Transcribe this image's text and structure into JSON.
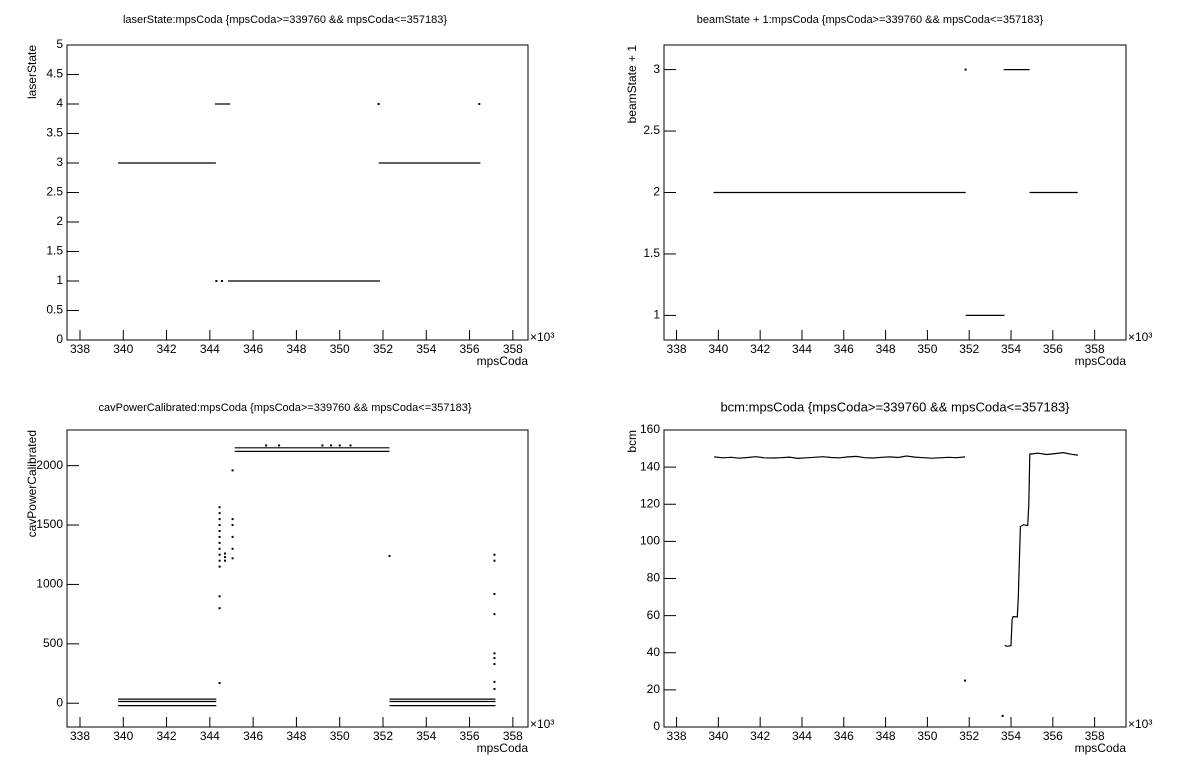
{
  "chart_data": [
    {
      "type": "scatter",
      "title": "laserState:mpsCoda {mpsCoda>=339760 && mpsCoda<=357183}",
      "x_label": "mpsCoda",
      "y_label": "laserState",
      "x_multiplier": "×10³",
      "xlim": [
        337.4,
        358.7
      ],
      "xticks": [
        338,
        340,
        342,
        344,
        346,
        348,
        350,
        352,
        354,
        356,
        358
      ],
      "ylim": [
        0,
        5
      ],
      "yticks": [
        0,
        0.5,
        1,
        1.5,
        2,
        2.5,
        3,
        3.5,
        4,
        4.5,
        5
      ],
      "series": [
        {
          "style": "line",
          "color": "#000000",
          "x": [
            339.76,
            344.28,
            null,
            344.24,
            344.93,
            null,
            344.84,
            351.86,
            null,
            351.8,
            356.5
          ],
          "values": [
            3,
            3,
            null,
            4,
            4,
            null,
            1,
            1,
            null,
            3,
            3
          ]
        },
        {
          "style": "dots",
          "color": "#000000",
          "x": [
            344.3,
            344.56,
            351.8,
            356.45
          ],
          "values": [
            1,
            1,
            4,
            4
          ]
        }
      ]
    },
    {
      "type": "scatter",
      "title": "beamState + 1:mpsCoda {mpsCoda>=339760 && mpsCoda<=357183}",
      "x_label": "mpsCoda",
      "y_label": "beamState + 1",
      "x_multiplier": "×10³",
      "xlim": [
        337.4,
        359.5
      ],
      "xticks": [
        338,
        340,
        342,
        344,
        346,
        348,
        350,
        352,
        354,
        356,
        358
      ],
      "ylim": [
        0.8,
        3.2
      ],
      "yticks": [
        1,
        1.5,
        2,
        2.5,
        3
      ],
      "series": [
        {
          "style": "line",
          "color": "#000000",
          "x": [
            339.77,
            351.83,
            null,
            351.83,
            353.69,
            null,
            353.65,
            354.89,
            null,
            354.89,
            357.19
          ],
          "values": [
            2,
            2,
            null,
            1,
            1,
            null,
            3,
            3,
            null,
            2,
            2
          ]
        },
        {
          "style": "dots",
          "color": "#000000",
          "x": [
            351.83
          ],
          "values": [
            3
          ]
        }
      ]
    },
    {
      "type": "scatter",
      "title": "cavPowerCalibrated:mpsCoda {mpsCoda>=339760 && mpsCoda<=357183}",
      "x_label": "mpsCoda",
      "y_label": "cavPowerCalibrated",
      "x_multiplier": "×10³",
      "xlim": [
        337.4,
        358.7
      ],
      "xticks": [
        338,
        340,
        342,
        344,
        346,
        348,
        350,
        352,
        354,
        356,
        358
      ],
      "ylim": [
        -200,
        2300
      ],
      "yticks": [
        0,
        500,
        1000,
        1500,
        2000
      ],
      "series": [
        {
          "style": "line",
          "color": "#000000",
          "x": [
            339.76,
            344.3,
            null,
            339.76,
            344.3,
            null,
            339.76,
            344.3,
            null,
            345.15,
            352.3,
            null,
            345.15,
            352.3,
            null,
            352.3,
            357.2,
            null,
            352.3,
            357.2,
            null,
            352.3,
            357.2
          ],
          "values": [
            35,
            35,
            null,
            15,
            15,
            null,
            -20,
            -20,
            null,
            2150,
            2150,
            null,
            2120,
            2120,
            null,
            35,
            35,
            null,
            15,
            15,
            null,
            -20,
            -20
          ]
        },
        {
          "style": "dots",
          "color": "#000000",
          "x": [
            344.45,
            344.45,
            344.45,
            344.45,
            344.45,
            344.45,
            344.45,
            344.45,
            344.45,
            344.45,
            344.45,
            344.45,
            344.45,
            344.45,
            344.7,
            344.7,
            344.7,
            345.05,
            345.05,
            345.05,
            345.05,
            345.05,
            345.05,
            352.3,
            346.6,
            347.2,
            349.2,
            349.6,
            350,
            350.5,
            357.15,
            357.15,
            357.15,
            357.15,
            357.15,
            357.15,
            357.15,
            357.15,
            357.15
          ],
          "values": [
            1150,
            1200,
            1250,
            1300,
            1350,
            1400,
            1450,
            1500,
            1550,
            1600,
            1650,
            900,
            800,
            170,
            1200,
            1230,
            1260,
            1220,
            1300,
            1400,
            1500,
            1550,
            1960,
            1240,
            2170,
            2170,
            2170,
            2170,
            2170,
            2170,
            1250,
            1200,
            920,
            750,
            420,
            380,
            330,
            180,
            120
          ]
        }
      ]
    },
    {
      "type": "scatter",
      "title": "bcm:mpsCoda {mpsCoda>=339760 && mpsCoda<=357183}",
      "x_label": "mpsCoda",
      "y_label": "bcm",
      "x_multiplier": "×10³",
      "xlim": [
        337.4,
        359.5
      ],
      "xticks": [
        338,
        340,
        342,
        344,
        346,
        348,
        350,
        352,
        354,
        356,
        358
      ],
      "ylim": [
        0,
        160
      ],
      "yticks": [
        0,
        20,
        40,
        60,
        80,
        100,
        120,
        140,
        160
      ],
      "series": [
        {
          "style": "line",
          "color": "#000000",
          "x": [
            339.8,
            340.2,
            340.6,
            341,
            341.4,
            341.8,
            342.2,
            342.6,
            343,
            343.4,
            343.8,
            344.2,
            344.6,
            345,
            345.4,
            345.8,
            346.2,
            346.6,
            347,
            347.4,
            347.8,
            348.2,
            348.6,
            349,
            349.4,
            349.8,
            350.2,
            350.6,
            351,
            351.4,
            351.8,
            null,
            353.7,
            353.8,
            354,
            354.05,
            354.1,
            354.3,
            354.35,
            354.4,
            354.45,
            354.6,
            354.8,
            354.85,
            354.9,
            355.3,
            355.7,
            356.1,
            356.5,
            356.9,
            357.2
          ],
          "values": [
            145.5,
            145,
            145.3,
            144.8,
            145.2,
            145.6,
            145,
            144.9,
            145.1,
            145.4,
            144.7,
            145,
            145.3,
            145.6,
            145.2,
            145,
            145.5,
            145.8,
            145.1,
            144.9,
            145.3,
            145.5,
            145.2,
            146,
            145.4,
            145.1,
            144.8,
            145,
            145.3,
            145.1,
            145.5,
            null,
            44,
            43.5,
            43.8,
            58,
            59.5,
            59.3,
            70,
            90,
            108,
            109,
            108.5,
            120,
            147,
            147.5,
            146.8,
            147.3,
            147.8,
            146.9,
            146.5
          ]
        },
        {
          "style": "dots",
          "color": "#000000",
          "x": [
            351.8,
            353.6
          ],
          "values": [
            25,
            6
          ]
        }
      ]
    }
  ]
}
